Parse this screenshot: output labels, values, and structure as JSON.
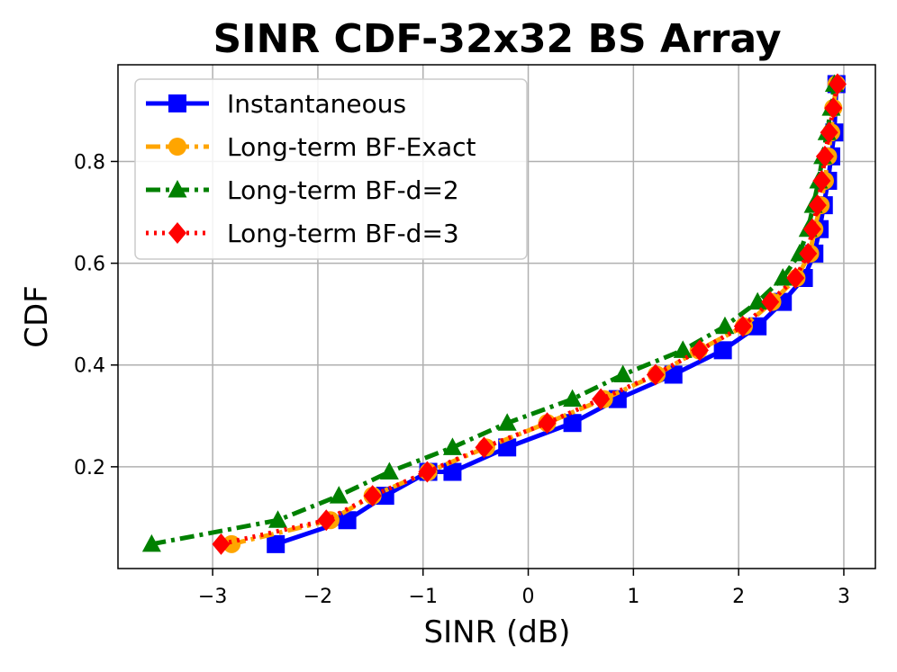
{
  "chart_data": {
    "type": "line",
    "title": "SINR CDF-32x32 BS Array",
    "xlabel": "SINR (dB)",
    "ylabel": "CDF",
    "xlim": [
      -3.9,
      3.3
    ],
    "ylim": [
      0.0,
      0.99
    ],
    "xticks": [
      -3,
      -2,
      -1,
      0,
      1,
      2,
      3
    ],
    "xtick_labels": [
      "−3",
      "−2",
      "−1",
      "0",
      "1",
      "2",
      "3"
    ],
    "yticks": [
      0.2,
      0.4,
      0.6,
      0.8
    ],
    "ytick_labels": [
      "0.2",
      "0.4",
      "0.6",
      "0.8"
    ],
    "grid": true,
    "legend_position": "top-left",
    "series": [
      {
        "name": "Instantaneous",
        "color": "#0000ff",
        "dash": "solid",
        "marker": "square",
        "x": [
          -2.4,
          -1.72,
          -1.36,
          -0.95,
          -0.72,
          -0.2,
          0.42,
          0.85,
          1.38,
          1.85,
          2.18,
          2.42,
          2.62,
          2.72,
          2.77,
          2.81,
          2.85,
          2.88,
          2.91,
          2.93
        ],
        "y": [
          0.048,
          0.095,
          0.143,
          0.19,
          0.19,
          0.238,
          0.286,
          0.333,
          0.381,
          0.429,
          0.476,
          0.524,
          0.571,
          0.619,
          0.667,
          0.714,
          0.762,
          0.81,
          0.857,
          0.952
        ]
      },
      {
        "name": "Long-term BF-Exact",
        "color": "#ffa500",
        "dash": "dashdot",
        "marker": "circle",
        "x": [
          -2.82,
          -1.88,
          -1.48,
          -0.95,
          -0.4,
          0.18,
          0.72,
          1.22,
          1.62,
          2.05,
          2.32,
          2.55,
          2.68,
          2.72,
          2.78,
          2.82,
          2.85,
          2.88,
          2.9,
          2.93
        ],
        "y": [
          0.048,
          0.095,
          0.143,
          0.19,
          0.238,
          0.286,
          0.333,
          0.381,
          0.429,
          0.476,
          0.524,
          0.571,
          0.619,
          0.667,
          0.714,
          0.762,
          0.81,
          0.857,
          0.905,
          0.952
        ]
      },
      {
        "name": "Long-term BF-d=2",
        "color": "#008000",
        "dash": "dashdot",
        "marker": "triangle",
        "x": [
          -3.58,
          -2.38,
          -1.8,
          -1.32,
          -0.72,
          -0.2,
          0.42,
          0.9,
          1.47,
          1.87,
          2.18,
          2.42,
          2.58,
          2.66,
          2.71,
          2.76,
          2.8,
          2.84,
          2.88,
          2.91
        ],
        "y": [
          0.048,
          0.095,
          0.143,
          0.19,
          0.238,
          0.286,
          0.333,
          0.381,
          0.429,
          0.476,
          0.524,
          0.571,
          0.619,
          0.667,
          0.714,
          0.762,
          0.81,
          0.857,
          0.905,
          0.952
        ]
      },
      {
        "name": "Long-term BF-d=3",
        "color": "#ff0000",
        "dash": "dotted",
        "marker": "diamond",
        "x": [
          -2.92,
          -1.92,
          -1.48,
          -0.96,
          -0.42,
          0.18,
          0.69,
          1.21,
          1.63,
          2.04,
          2.3,
          2.54,
          2.66,
          2.7,
          2.75,
          2.79,
          2.82,
          2.86,
          2.9,
          2.94
        ],
        "y": [
          0.048,
          0.095,
          0.143,
          0.19,
          0.238,
          0.286,
          0.333,
          0.381,
          0.429,
          0.476,
          0.524,
          0.571,
          0.619,
          0.667,
          0.714,
          0.762,
          0.81,
          0.857,
          0.905,
          0.952
        ]
      }
    ]
  }
}
